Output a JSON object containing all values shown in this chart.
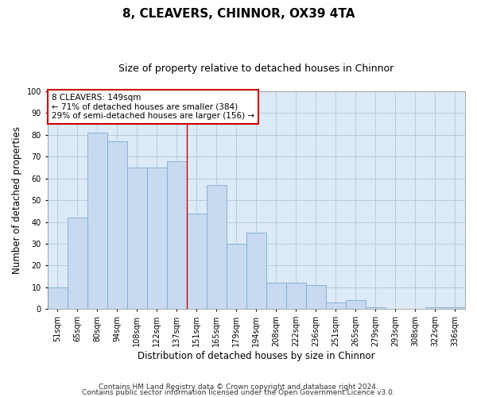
{
  "title1": "8, CLEAVERS, CHINNOR, OX39 4TA",
  "title2": "Size of property relative to detached houses in Chinnor",
  "xlabel": "Distribution of detached houses by size in Chinnor",
  "ylabel": "Number of detached properties",
  "categories": [
    "51sqm",
    "65sqm",
    "80sqm",
    "94sqm",
    "108sqm",
    "122sqm",
    "137sqm",
    "151sqm",
    "165sqm",
    "179sqm",
    "194sqm",
    "208sqm",
    "222sqm",
    "236sqm",
    "251sqm",
    "265sqm",
    "279sqm",
    "293sqm",
    "308sqm",
    "322sqm",
    "336sqm"
  ],
  "values": [
    10,
    42,
    81,
    77,
    65,
    65,
    68,
    44,
    57,
    30,
    35,
    12,
    12,
    11,
    3,
    4,
    1,
    0,
    0,
    1,
    1
  ],
  "bar_color": "#c8daf0",
  "bar_edge_color": "#7aadd4",
  "annotation_text": "8 CLEAVERS: 149sqm\n← 71% of detached houses are smaller (384)\n29% of semi-detached houses are larger (156) →",
  "annotation_box_color": "#ffffff",
  "annotation_box_edge_color": "#cc0000",
  "vline_color": "#cc0000",
  "vline_x": 6.5,
  "ylim": [
    0,
    100
  ],
  "yticks": [
    0,
    10,
    20,
    30,
    40,
    50,
    60,
    70,
    80,
    90,
    100
  ],
  "grid_color": "#b8cde0",
  "background_color": "#ddeaf7",
  "footer1": "Contains HM Land Registry data © Crown copyright and database right 2024.",
  "footer2": "Contains public sector information licensed under the Open Government Licence v3.0.",
  "title1_fontsize": 11,
  "title2_fontsize": 9,
  "xlabel_fontsize": 8.5,
  "ylabel_fontsize": 8.5,
  "tick_fontsize": 7,
  "footer_fontsize": 6.5,
  "ann_fontsize": 7.5
}
